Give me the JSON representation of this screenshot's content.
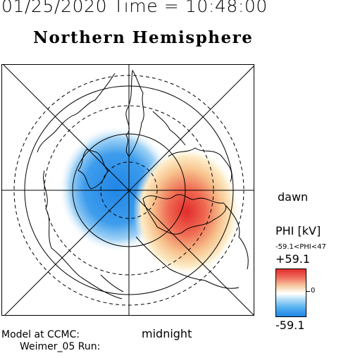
{
  "header": {
    "timestamp": "01/25/2020 Time = 10:48:00",
    "hemisphere": "Northern Hemisphere"
  },
  "plot": {
    "dawn_label": "dawn",
    "midnight_label": "midnight",
    "positive_color": "#e22b2b",
    "negative_color": "#1f86e6"
  },
  "colorbar": {
    "title": "PHI [kV]",
    "range_text": "-59.1<PHI<47",
    "max_label": "+59.1",
    "zero_label": "0",
    "min_label": "-59.1"
  },
  "footer": {
    "model_line1": "Model at CCMC:",
    "model_line2": "Weimer_05 Run:"
  }
}
